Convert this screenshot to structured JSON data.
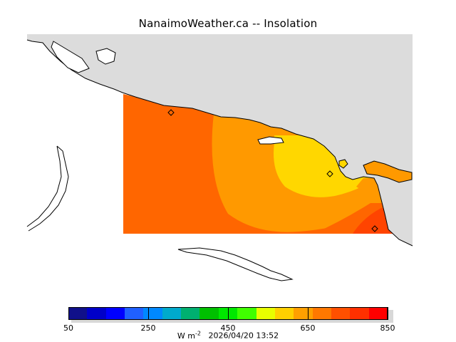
{
  "header": {
    "title": "NanaimoWeather.ca -- Insolation"
  },
  "colorbar": {
    "colors": [
      "#10108a",
      "#0000c8",
      "#0000ff",
      "#2060ff",
      "#0088ff",
      "#00aacc",
      "#00b070",
      "#00c000",
      "#00e800",
      "#40ff00",
      "#e8ff00",
      "#ffd000",
      "#ffa000",
      "#ff7800",
      "#ff5000",
      "#ff3000",
      "#ff0000"
    ],
    "tick_labels": [
      {
        "text": "50",
        "value": 50
      },
      {
        "text": "250",
        "value": 250
      },
      {
        "text": "450",
        "value": 450
      },
      {
        "text": "650",
        "value": 650
      },
      {
        "text": "850",
        "value": 850
      }
    ],
    "range": [
      50,
      850
    ]
  },
  "footer": {
    "units_base": "W m",
    "units_exp": "-2",
    "timestamp": "2026/04/20 13:52"
  },
  "map": {
    "land_color": "#dcdcdc",
    "zones": [
      {
        "label": "650-700",
        "color": "#ff6600"
      },
      {
        "label": "600-650",
        "color": "#ff9900"
      },
      {
        "label": "550-600",
        "color": "#ffd700"
      },
      {
        "label": "700-750",
        "color": "#ff4400"
      }
    ],
    "stations_count": 3
  }
}
